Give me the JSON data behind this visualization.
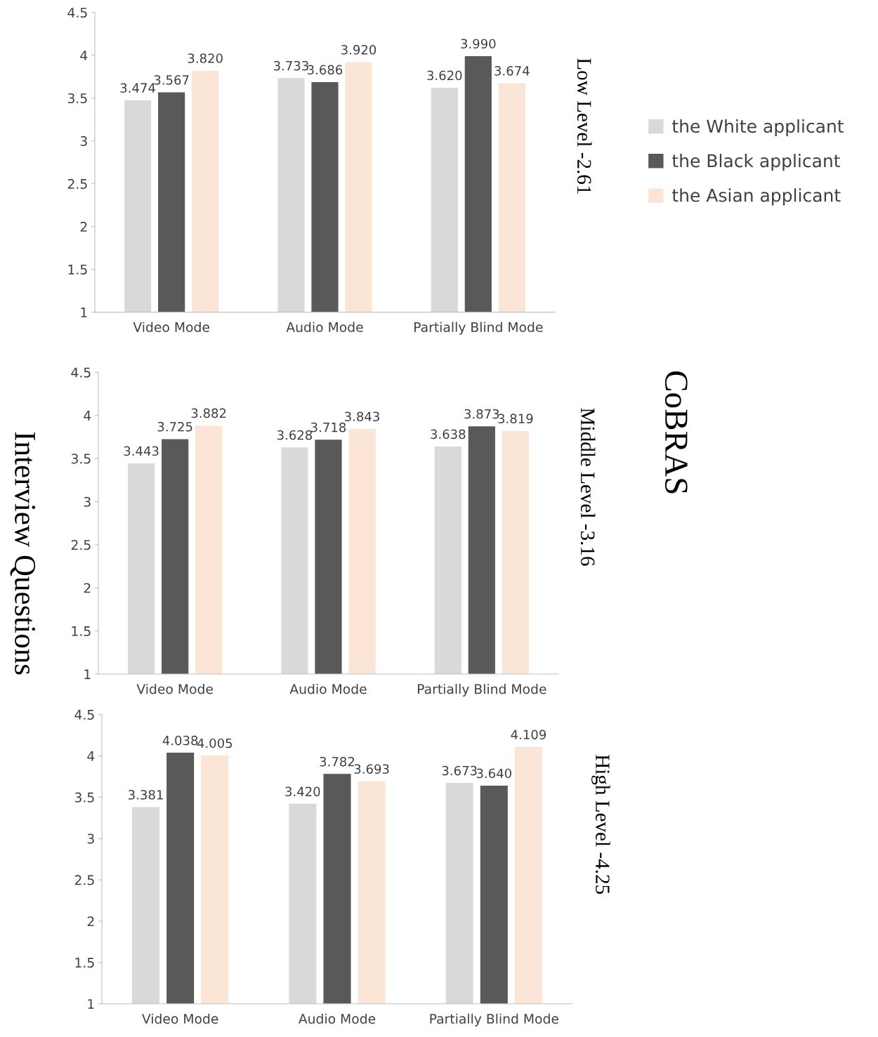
{
  "chart_data": [
    {
      "type": "bar",
      "ylabel": "Low Level -2.61",
      "categories": [
        "Video Mode",
        "Audio Mode",
        "Partially Blind Mode"
      ],
      "ylim": [
        1,
        4.5
      ],
      "yticks": [
        1,
        1.5,
        2,
        2.5,
        3,
        3.5,
        4,
        4.5
      ],
      "grid": false,
      "legend": "right",
      "series": [
        {
          "name": "the White applicant",
          "color": "#d9d9d9",
          "values": [
            3.474,
            3.733,
            3.62
          ],
          "value_labels": [
            "3.474",
            "3.733",
            "3.620"
          ]
        },
        {
          "name": "the Black applicant",
          "color": "#595959",
          "values": [
            3.567,
            3.686,
            3.99
          ],
          "value_labels": [
            "3.567",
            "3.686",
            "3.990"
          ]
        },
        {
          "name": "the Asian applicant",
          "color": "#fbe5d6",
          "values": [
            3.82,
            3.92,
            3.674
          ],
          "value_labels": [
            "3.820",
            "3.920",
            "3.674"
          ]
        }
      ]
    },
    {
      "type": "bar",
      "ylabel": "Middle Level -3.16",
      "annotations": [
        "Interview Questions",
        "CoBRAS"
      ],
      "categories": [
        "Video Mode",
        "Audio Mode",
        "Partially Blind Mode"
      ],
      "ylim": [
        1,
        4.5
      ],
      "yticks": [
        1,
        1.5,
        2,
        2.5,
        3,
        3.5,
        4,
        4.5
      ],
      "grid": false,
      "series": [
        {
          "color": "#d9d9d9",
          "values": [
            3.443,
            3.628,
            3.638
          ],
          "value_labels": [
            "3.443",
            "3.628",
            "3.638"
          ]
        },
        {
          "color": "#595959",
          "values": [
            3.725,
            3.718,
            3.873
          ],
          "value_labels": [
            "3.725",
            "3.718",
            "3.873"
          ]
        },
        {
          "color": "#fbe5d6",
          "values": [
            3.882,
            3.843,
            3.819
          ],
          "value_labels": [
            "3.882",
            "3.843",
            "3.819"
          ]
        }
      ]
    },
    {
      "type": "bar",
      "ylabel": "High Level -4.25",
      "categories": [
        "Video Mode",
        "Audio Mode",
        "Partially Blind Mode"
      ],
      "ylim": [
        1,
        4.5
      ],
      "yticks": [
        1,
        1.5,
        2,
        2.5,
        3,
        3.5,
        4,
        4.5
      ],
      "grid": false,
      "series": [
        {
          "color": "#d9d9d9",
          "values": [
            3.381,
            3.42,
            3.673
          ],
          "value_labels": [
            "3.381",
            "3.420",
            "3.673"
          ]
        },
        {
          "color": "#595959",
          "values": [
            4.038,
            3.782,
            3.64
          ],
          "value_labels": [
            "4.038",
            "3.782",
            "3.640"
          ]
        },
        {
          "color": "#fbe5d6",
          "values": [
            4.005,
            3.693,
            4.109
          ],
          "value_labels": [
            "4.005",
            "3.693",
            "4.109"
          ]
        }
      ]
    }
  ]
}
